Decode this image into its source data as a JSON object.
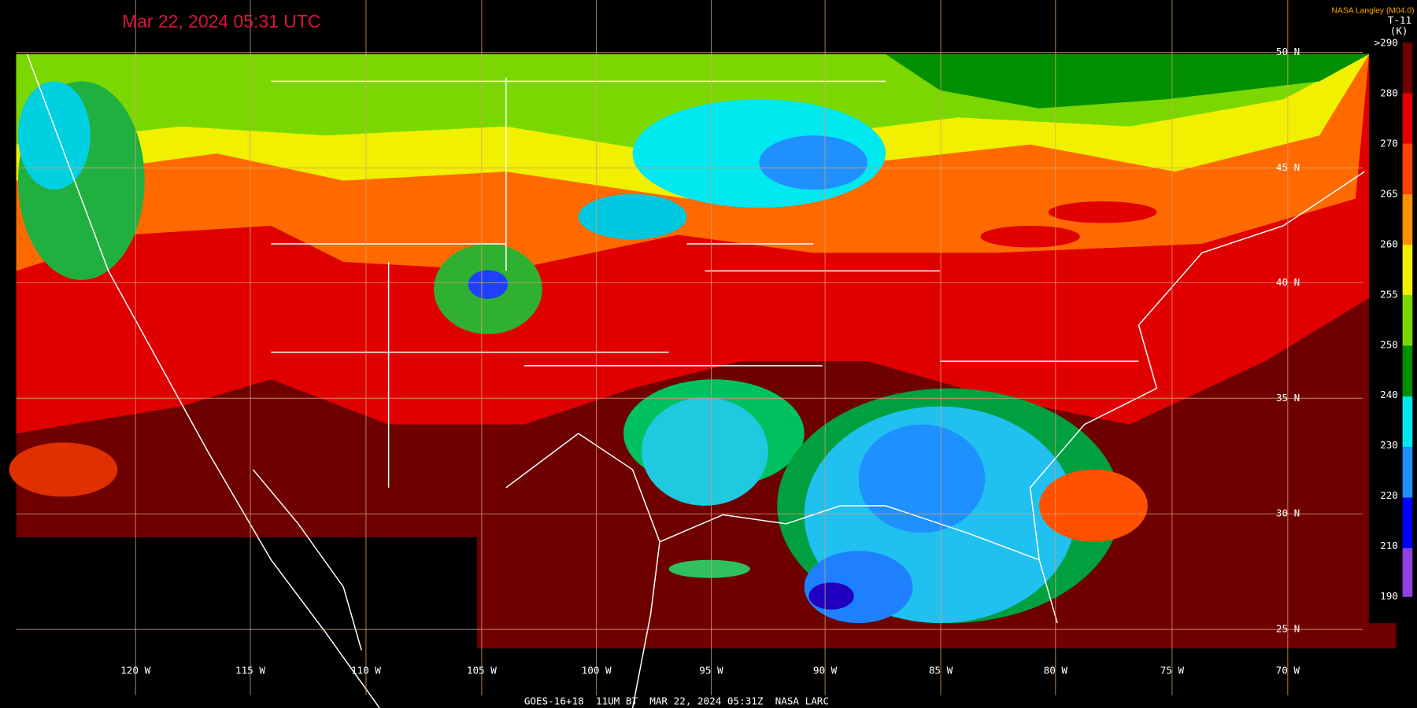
{
  "header": {
    "timestamp": "Mar 22, 2024 05:31 UTC",
    "source": "NASA Langley (M04.0)",
    "product": "T-11",
    "units": "(K)"
  },
  "colorbar": {
    "labels": [
      ">290",
      "280",
      "270",
      "265",
      "260",
      "255",
      "250",
      "240",
      "230",
      "220",
      "210",
      "190"
    ]
  },
  "map": {
    "lat_labels": [
      "50 N",
      "45 N",
      "40 N",
      "35 N",
      "30 N",
      "25 N"
    ],
    "lon_labels": [
      "120 W",
      "115 W",
      "110 W",
      "105 W",
      "100 W",
      "95 W",
      "90 W",
      "85 W",
      "80 W",
      "75 W",
      "70 W"
    ]
  },
  "footer": {
    "text": "GOES-16+18  11UM BT  MAR 22, 2024 05:31Z  NASA LARC"
  }
}
